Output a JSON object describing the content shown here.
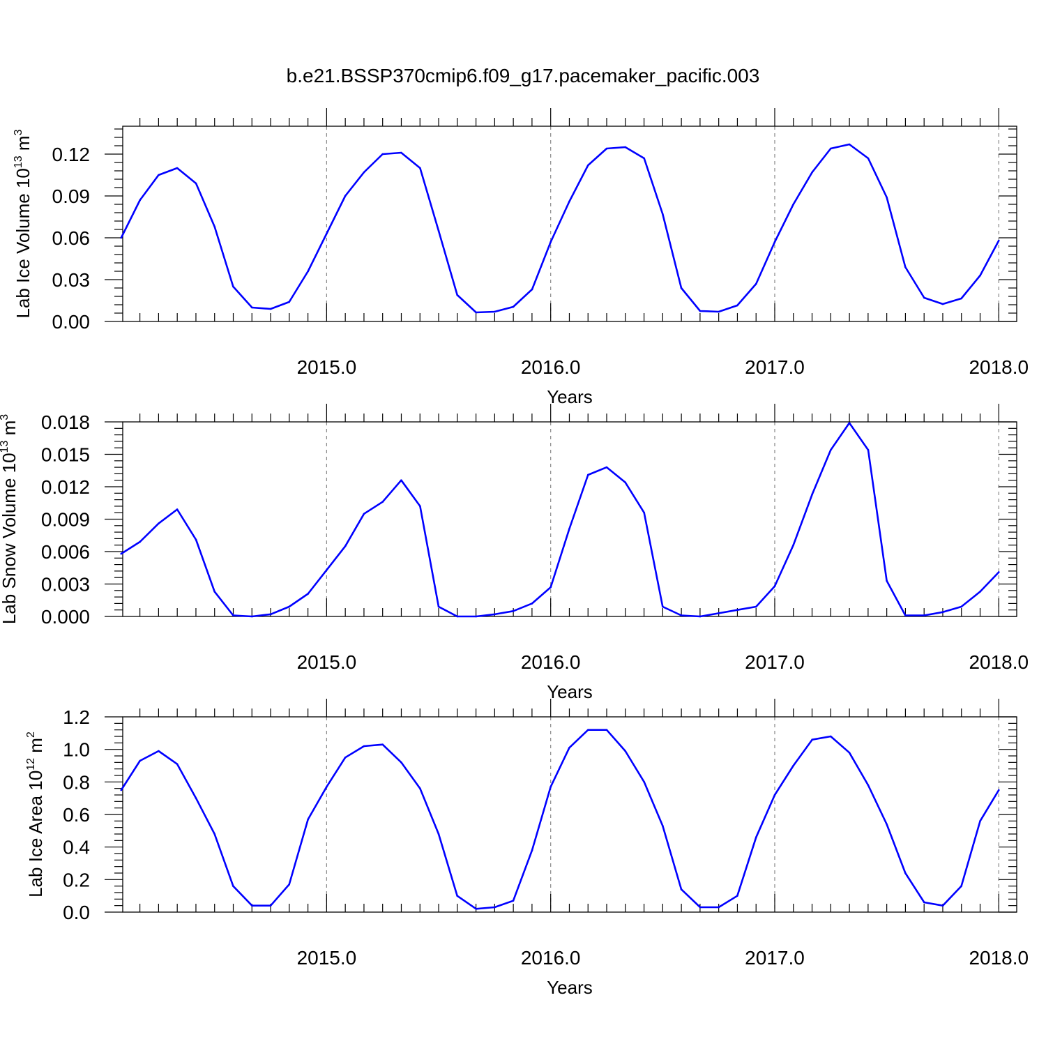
{
  "figure": {
    "title": "b.e21.BSSP370cmip6.f09_g17.pacemaker_pacific.003",
    "line_color": "#0000ff",
    "grid_color": "#888888"
  },
  "chart_data": [
    {
      "type": "line",
      "title": "",
      "xlabel": "Years",
      "ylabel": "Lab Ice Volume 10",
      "ylabel_exponent": "13",
      "ylabel_unit": "m",
      "ylabel_unit_exponent": "3",
      "xlim": [
        2014.09,
        2018.08
      ],
      "ylim": [
        0,
        0.14
      ],
      "yticks": [
        0,
        0.03,
        0.06,
        0.09,
        0.12
      ],
      "ytick_labels": [
        "0.00",
        "0.03",
        "0.06",
        "0.09",
        "0.12"
      ],
      "xticks": [
        2015,
        2016,
        2017,
        2018
      ],
      "xtick_labels": [
        "2015.0",
        "2016.0",
        "2017.0",
        "2018.0"
      ],
      "grid": "dashed vertical at year boundaries",
      "x": [
        2014.083,
        2014.167,
        2014.25,
        2014.333,
        2014.417,
        2014.5,
        2014.583,
        2014.667,
        2014.75,
        2014.833,
        2014.917,
        2015.0,
        2015.083,
        2015.167,
        2015.25,
        2015.333,
        2015.417,
        2015.5,
        2015.583,
        2015.667,
        2015.75,
        2015.833,
        2015.917,
        2016.0,
        2016.083,
        2016.167,
        2016.25,
        2016.333,
        2016.417,
        2016.5,
        2016.583,
        2016.667,
        2016.75,
        2016.833,
        2016.917,
        2017.0,
        2017.083,
        2017.167,
        2017.25,
        2017.333,
        2017.417,
        2017.5,
        2017.583,
        2017.667,
        2017.75,
        2017.833,
        2017.917,
        2018.0
      ],
      "values": [
        0.06,
        0.087,
        0.105,
        0.11,
        0.099,
        0.068,
        0.025,
        0.01,
        0.009,
        0.014,
        0.036,
        0.063,
        0.09,
        0.107,
        0.12,
        0.121,
        0.11,
        0.065,
        0.019,
        0.0065,
        0.007,
        0.0105,
        0.023,
        0.057,
        0.086,
        0.112,
        0.124,
        0.125,
        0.117,
        0.077,
        0.024,
        0.0075,
        0.007,
        0.0115,
        0.027,
        0.057,
        0.084,
        0.107,
        0.124,
        0.127,
        0.117,
        0.089,
        0.039,
        0.017,
        0.0125,
        0.0165,
        0.033,
        0.058
      ]
    },
    {
      "type": "line",
      "title": "",
      "xlabel": "Years",
      "ylabel": "Lab Snow Volume 10",
      "ylabel_exponent": "13",
      "ylabel_unit": "m",
      "ylabel_unit_exponent": "3",
      "xlim": [
        2014.09,
        2018.08
      ],
      "ylim": [
        0,
        0.018
      ],
      "yticks": [
        0,
        0.003,
        0.006,
        0.009,
        0.012,
        0.015,
        0.018
      ],
      "ytick_labels": [
        "0.000",
        "0.003",
        "0.006",
        "0.009",
        "0.012",
        "0.015",
        "0.018"
      ],
      "xticks": [
        2015,
        2016,
        2017,
        2018
      ],
      "xtick_labels": [
        "2015.0",
        "2016.0",
        "2017.0",
        "2018.0"
      ],
      "grid": "dashed vertical at year boundaries",
      "x": [
        2014.083,
        2014.167,
        2014.25,
        2014.333,
        2014.417,
        2014.5,
        2014.583,
        2014.667,
        2014.75,
        2014.833,
        2014.917,
        2015.0,
        2015.083,
        2015.167,
        2015.25,
        2015.333,
        2015.417,
        2015.5,
        2015.583,
        2015.667,
        2015.75,
        2015.833,
        2015.917,
        2016.0,
        2016.083,
        2016.167,
        2016.25,
        2016.333,
        2016.417,
        2016.5,
        2016.583,
        2016.667,
        2016.75,
        2016.833,
        2016.917,
        2017.0,
        2017.083,
        2017.167,
        2017.25,
        2017.333,
        2017.417,
        2017.5,
        2017.583,
        2017.667,
        2017.75,
        2017.833,
        2017.917,
        2018.0
      ],
      "values": [
        0.0058,
        0.0069,
        0.0086,
        0.0099,
        0.0071,
        0.0023,
        0.0001,
        0.0,
        0.0002,
        0.0009,
        0.0021,
        0.0043,
        0.0065,
        0.0095,
        0.0106,
        0.0126,
        0.0102,
        0.0009,
        0.0,
        0.0,
        0.0002,
        0.0005,
        0.0012,
        0.0027,
        0.0081,
        0.0131,
        0.0138,
        0.0124,
        0.0096,
        0.0009,
        0.0001,
        0.0,
        0.0003,
        0.0006,
        0.0009,
        0.0028,
        0.0066,
        0.0113,
        0.0154,
        0.0179,
        0.0154,
        0.0033,
        0.0001,
        0.0001,
        0.0004,
        0.0009,
        0.0023,
        0.0041
      ]
    },
    {
      "type": "line",
      "title": "",
      "xlabel": "Years",
      "ylabel": "Lab Ice Area 10",
      "ylabel_exponent": "12",
      "ylabel_unit": "m",
      "ylabel_unit_exponent": "2",
      "xlim": [
        2014.09,
        2018.08
      ],
      "ylim": [
        0,
        1.2
      ],
      "yticks": [
        0,
        0.2,
        0.4,
        0.6,
        0.8,
        1.0,
        1.2
      ],
      "ytick_labels": [
        "0.0",
        "0.2",
        "0.4",
        "0.6",
        "0.8",
        "1.0",
        "1.2"
      ],
      "xticks": [
        2015,
        2016,
        2017,
        2018
      ],
      "xtick_labels": [
        "2015.0",
        "2016.0",
        "2017.0",
        "2018.0"
      ],
      "grid": "dashed vertical at year boundaries",
      "x": [
        2014.083,
        2014.167,
        2014.25,
        2014.333,
        2014.417,
        2014.5,
        2014.583,
        2014.667,
        2014.75,
        2014.833,
        2014.917,
        2015.0,
        2015.083,
        2015.167,
        2015.25,
        2015.333,
        2015.417,
        2015.5,
        2015.583,
        2015.667,
        2015.75,
        2015.833,
        2015.917,
        2016.0,
        2016.083,
        2016.167,
        2016.25,
        2016.333,
        2016.417,
        2016.5,
        2016.583,
        2016.667,
        2016.75,
        2016.833,
        2016.917,
        2017.0,
        2017.083,
        2017.167,
        2017.25,
        2017.333,
        2017.417,
        2017.5,
        2017.583,
        2017.667,
        2017.75,
        2017.833,
        2017.917,
        2018.0
      ],
      "values": [
        0.75,
        0.93,
        0.99,
        0.91,
        0.7,
        0.48,
        0.16,
        0.04,
        0.04,
        0.17,
        0.57,
        0.77,
        0.95,
        1.02,
        1.03,
        0.92,
        0.76,
        0.48,
        0.1,
        0.02,
        0.03,
        0.07,
        0.38,
        0.77,
        1.01,
        1.12,
        1.12,
        0.99,
        0.8,
        0.53,
        0.14,
        0.03,
        0.03,
        0.1,
        0.46,
        0.72,
        0.9,
        1.06,
        1.08,
        0.98,
        0.78,
        0.54,
        0.24,
        0.06,
        0.04,
        0.16,
        0.56,
        0.75
      ]
    }
  ]
}
